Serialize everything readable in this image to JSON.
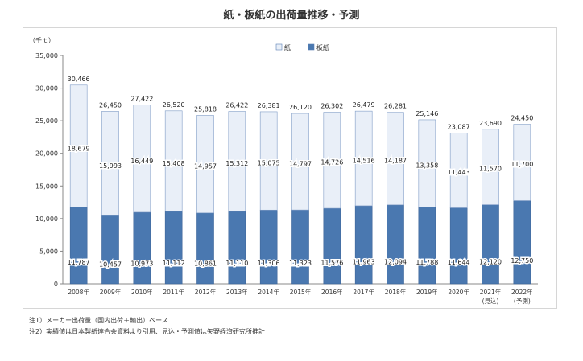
{
  "title": "紙・板紙の出荷量推移・予測",
  "chart_data": {
    "type": "bar",
    "stacked": true,
    "unit_label": "（千ｔ）",
    "categories": [
      "2008年",
      "2009年",
      "2010年",
      "2011年",
      "2012年",
      "2013年",
      "2014年",
      "2015年",
      "2016年",
      "2017年",
      "2018年",
      "2019年",
      "2020年",
      "2021年",
      "2022年"
    ],
    "sublabels": [
      "",
      "",
      "",
      "",
      "",
      "",
      "",
      "",
      "",
      "",
      "",
      "",
      "",
      "(見込)",
      "(予測)"
    ],
    "series": [
      {
        "name": "板紙",
        "color": "#4a78b0",
        "values": [
          11787,
          10457,
          10973,
          11112,
          10861,
          11110,
          11306,
          11323,
          11576,
          11963,
          12094,
          11788,
          11644,
          12120,
          12750
        ]
      },
      {
        "name": "紙",
        "color": "#e9eff8",
        "values": [
          18679,
          15993,
          16449,
          15408,
          14957,
          15312,
          15075,
          14797,
          14726,
          14516,
          14187,
          13358,
          11443,
          11570,
          11700
        ]
      }
    ],
    "totals": [
      30466,
      26450,
      27422,
      26520,
      25818,
      26422,
      26381,
      26120,
      26302,
      26479,
      26281,
      25146,
      23087,
      23690,
      24450
    ],
    "ylim": [
      0,
      35000
    ],
    "yticks": [
      0,
      5000,
      10000,
      15000,
      20000,
      25000,
      30000,
      35000
    ],
    "legend_position": "top-center",
    "grid": false
  },
  "notes": [
    "注1）メーカー出荷量（国内出荷＋輸出）ベース",
    "注2）実績値は日本製紙連合会資料より引用、見込・予測値は矢野経済研究所推計"
  ]
}
